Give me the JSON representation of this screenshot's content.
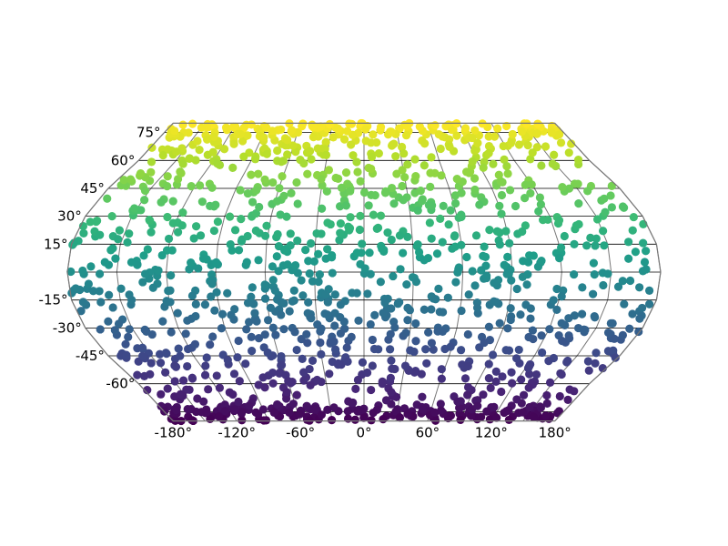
{
  "chart_data": {
    "type": "scatter",
    "projection": "robinson-like pseudo-cylindrical (truncated at ±80° latitude)",
    "lon_range": [
      -180,
      180
    ],
    "lat_range": [
      -80,
      80
    ],
    "colormap": "viridis",
    "color_encodes": "latitude (dark purple at south, yellow at north)",
    "colormap_stops": [
      "#440154",
      "#482878",
      "#3e4989",
      "#31688e",
      "#26828e",
      "#1f9e89",
      "#35b779",
      "#6ece58",
      "#b5de2b",
      "#fde725"
    ],
    "meridians": [
      -180,
      -150,
      -120,
      -90,
      -60,
      -30,
      0,
      30,
      60,
      90,
      120,
      150,
      180
    ],
    "parallels": [
      -75,
      -60,
      -45,
      -30,
      -15,
      0,
      15,
      30,
      45,
      60,
      75
    ],
    "grid": true,
    "grid_color": "#777777",
    "lon_tick_labels": [
      {
        "lon": -180,
        "text": "-180°"
      },
      {
        "lon": -120,
        "text": "-120°"
      },
      {
        "lon": -60,
        "text": "-60°"
      },
      {
        "lon": 0,
        "text": "0°"
      },
      {
        "lon": 60,
        "text": "60°"
      },
      {
        "lon": 120,
        "text": "120°"
      },
      {
        "lon": 180,
        "text": "180°"
      }
    ],
    "lat_tick_labels": [
      {
        "lat": 75,
        "text": "75°"
      },
      {
        "lat": 60,
        "text": "60°"
      },
      {
        "lat": 45,
        "text": "45°"
      },
      {
        "lat": 30,
        "text": "30°"
      },
      {
        "lat": 15,
        "text": "15°"
      },
      {
        "lat": -15,
        "text": "-15°"
      },
      {
        "lat": -30,
        "text": "-30°"
      },
      {
        "lat": -45,
        "text": "-45°"
      },
      {
        "lat": -60,
        "text": "-60°"
      }
    ],
    "point_count": 1400,
    "point_distribution": "scattered roughly uniformly over the globe, denser toward the poles at the truncation edges"
  }
}
